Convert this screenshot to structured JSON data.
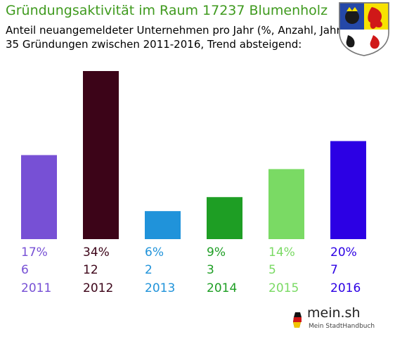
{
  "header": {
    "title": "Gründungsaktivität im Raum 17237 Blumenholz",
    "subtitle_line1": "Anteil neuangemeldeter Unternehmen pro Jahr (%, Anzahl, Jahr)",
    "subtitle_line2": "35 Gründungen zwischen 2011-2016, Trend absteigend:"
  },
  "branding": {
    "logo_text": "mein.sh",
    "logo_subtext": "Mein StadtHandbuch"
  },
  "chart_data": {
    "type": "bar",
    "title": "Gründungsaktivität im Raum 17237 Blumenholz",
    "categories": [
      "2011",
      "2012",
      "2013",
      "2014",
      "2015",
      "2016"
    ],
    "percent_labels": [
      "17%",
      "34%",
      "6%",
      "9%",
      "14%",
      "20%"
    ],
    "count_labels": [
      "6",
      "12",
      "2",
      "3",
      "5",
      "7"
    ],
    "values": [
      6,
      12,
      2,
      3,
      5,
      7
    ],
    "colors": [
      "#7750d5",
      "#3c0418",
      "#2093da",
      "#1e9e24",
      "#7ada64",
      "#2c00e4"
    ],
    "ylim": [
      0,
      12
    ],
    "grid": false
  }
}
